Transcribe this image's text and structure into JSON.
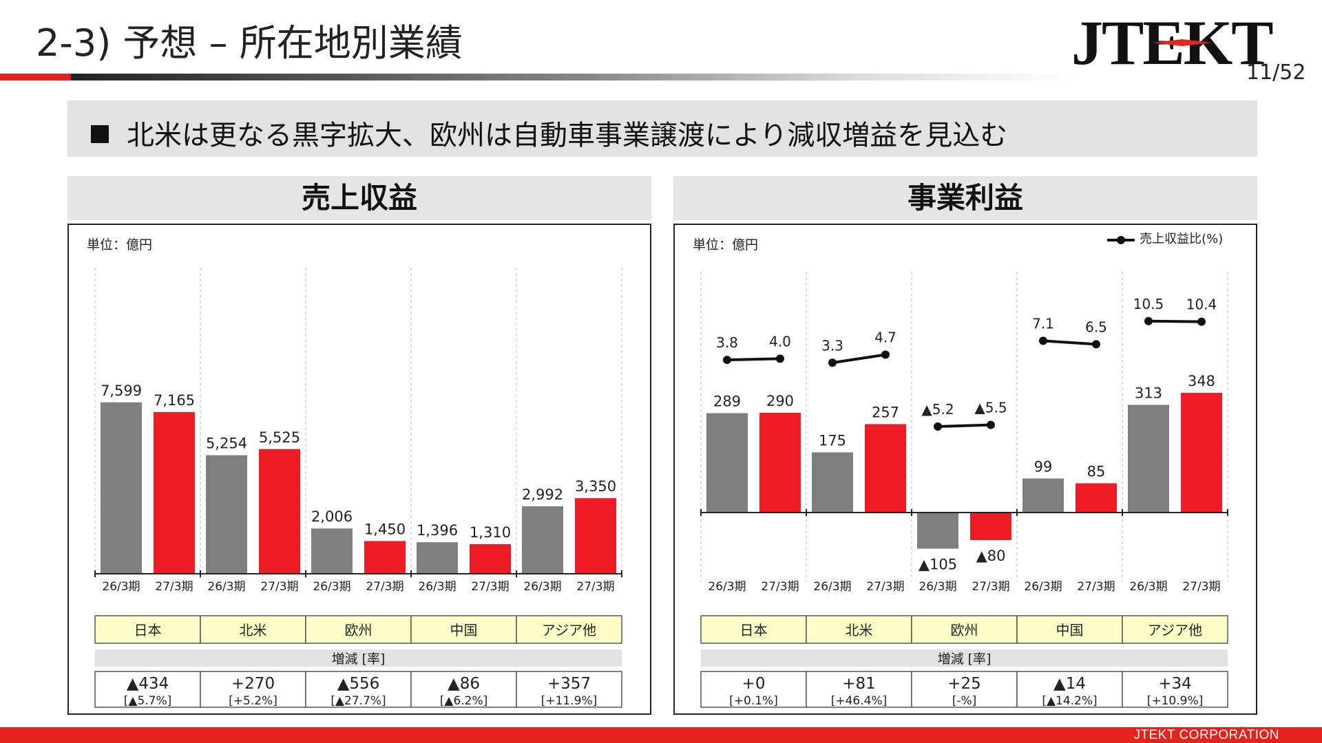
{
  "header": {
    "title": "2-3) 予想 – 所在地別業績",
    "logo_text": "JTEKT",
    "page_number": "11/52",
    "headline": "北米は更なる黒字拡大、欧州は自動車事業譲渡により減収増益を見込む"
  },
  "footer": {
    "company": "JTEKT  CORPORATION"
  },
  "colors": {
    "gray_bar": "#7f7f7f",
    "red_bar": "#ee1c25",
    "accent": "#e3231c",
    "region_fill": "#ffffc8"
  },
  "revenue_panel": {
    "title": "売上収益",
    "unit": "単位：億円",
    "change_header": "増減 [率]"
  },
  "profit_panel": {
    "title": "事業利益",
    "unit": "単位：億円",
    "legend": "売上収益比(%)",
    "change_header": "増減 [率]"
  },
  "chart_data": [
    {
      "type": "bar",
      "title": "売上収益",
      "categories": [
        "日本",
        "北米",
        "欧州",
        "中国",
        "アジア他"
      ],
      "period_labels": [
        "26/3期",
        "27/3期"
      ],
      "series": [
        {
          "values": [
            7599,
            5254,
            2006,
            1396,
            2992
          ],
          "labels": [
            "7,599",
            "5,254",
            "2,006",
            "1,396",
            "2,992"
          ]
        },
        {
          "values": [
            7165,
            5525,
            1450,
            1310,
            3350
          ],
          "labels": [
            "7,165",
            "5,525",
            "1,450",
            "1,310",
            "3,350"
          ]
        }
      ],
      "changes": [
        "▲434",
        "+270",
        "▲556",
        "▲86",
        "+357"
      ],
      "change_rates": [
        "[▲5.7%]",
        "[+5.2%]",
        "[▲27.7%]",
        "[▲6.2%]",
        "[+11.9%]"
      ]
    },
    {
      "type": "bar",
      "title": "事業利益",
      "categories": [
        "日本",
        "北米",
        "欧州",
        "中国",
        "アジア他"
      ],
      "period_labels": [
        "26/3期",
        "27/3期"
      ],
      "series": [
        {
          "values": [
            289,
            175,
            -105,
            99,
            313
          ],
          "labels": [
            "289",
            "175",
            "▲105",
            "99",
            "313"
          ]
        },
        {
          "values": [
            290,
            257,
            -80,
            85,
            348
          ],
          "labels": [
            "290",
            "257",
            "▲80",
            "85",
            "348"
          ]
        }
      ],
      "ratio_series": {
        "name": "売上収益比(%)",
        "values": [
          [
            3.8,
            4.0
          ],
          [
            3.3,
            4.7
          ],
          [
            -5.2,
            -5.5
          ],
          [
            7.1,
            6.5
          ],
          [
            10.5,
            10.4
          ]
        ],
        "labels": [
          [
            "3.8",
            "4.0"
          ],
          [
            "3.3",
            "4.7"
          ],
          [
            "▲5.2",
            "▲5.5"
          ],
          [
            "7.1",
            "6.5"
          ],
          [
            "10.5",
            "10.4"
          ]
        ]
      },
      "changes": [
        "+0",
        "+81",
        "+25",
        "▲14",
        "+34"
      ],
      "change_rates": [
        "[+0.1%]",
        "[+46.4%]",
        "[-%]",
        "[▲14.2%]",
        "[+10.9%]"
      ]
    }
  ]
}
